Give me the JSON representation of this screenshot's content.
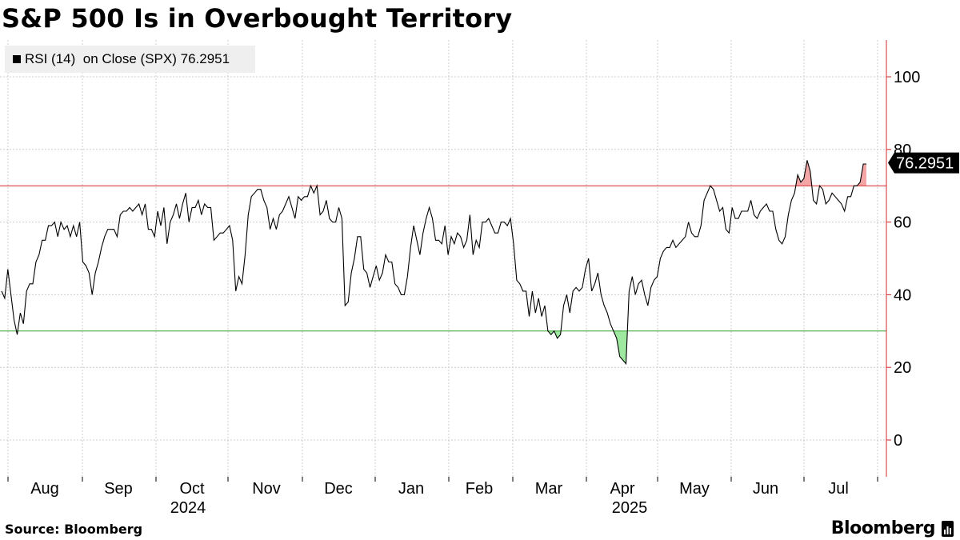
{
  "title": "S&P 500 Is in Overbought Territory",
  "legend": {
    "label": "RSI (14)  on Close (SPX) 76.2951"
  },
  "source": "Source: Bloomberg",
  "brand": {
    "name": "Bloomberg"
  },
  "colors": {
    "line": "#000000",
    "overbought": "#d62728",
    "oversold": "#2ca02c",
    "overbought_fill": "#f4a6a6",
    "oversold_fill": "#9fe89f",
    "grid": "#cccccc"
  },
  "chart_data": {
    "type": "line",
    "title": "S&P 500 Is in Overbought Territory",
    "xlabel": "",
    "ylabel": "",
    "ylim": [
      -10,
      110
    ],
    "yticks": [
      0,
      20,
      40,
      60,
      80,
      100
    ],
    "thresholds": [
      {
        "value": 70,
        "label": "overbought",
        "color": "#d62728"
      },
      {
        "value": 30,
        "label": "oversold",
        "color": "#2ca02c"
      }
    ],
    "month_labels": [
      "Aug",
      "Sep",
      "Oct",
      "Nov",
      "Dec",
      "Jan",
      "Feb",
      "Mar",
      "Apr",
      "May",
      "Jun",
      "Jul"
    ],
    "year_labels": [
      "2024",
      "2025"
    ],
    "last_value_label": "76.2951",
    "series": [
      {
        "name": "RSI (14) on Close (SPX)",
        "values": [
          41,
          39,
          47,
          40,
          33,
          29,
          35,
          32,
          41,
          43,
          43,
          49,
          51,
          55,
          55,
          59,
          59,
          60,
          56,
          60,
          58,
          59,
          56,
          59,
          56,
          60,
          49,
          48,
          46,
          40,
          46,
          49,
          53,
          56,
          58,
          58,
          58,
          56,
          62,
          63,
          63,
          64,
          63,
          64,
          65,
          62,
          65,
          58,
          58,
          56,
          63,
          59,
          64,
          54,
          60,
          62,
          65,
          61,
          65,
          68,
          60,
          64,
          64,
          66,
          62,
          65,
          64,
          64,
          55,
          56,
          57,
          57,
          58,
          59,
          55,
          41,
          45,
          43,
          51,
          62,
          67,
          68,
          69,
          69,
          66,
          64,
          58,
          61,
          58,
          62,
          63,
          65,
          67,
          64,
          61,
          67,
          66,
          67,
          67,
          70,
          68,
          70,
          62,
          63,
          66,
          61,
          60,
          60,
          64,
          61,
          37,
          38,
          46,
          50,
          56,
          56,
          47,
          46,
          42,
          45,
          48,
          44,
          46,
          51,
          49,
          49,
          43,
          42,
          40,
          40,
          45,
          53,
          59,
          55,
          51,
          57,
          61,
          64,
          61,
          55,
          55,
          54,
          59,
          51,
          56,
          54,
          57,
          56,
          53,
          55,
          62,
          51,
          55,
          53,
          60,
          60,
          61,
          59,
          57,
          57,
          60,
          60,
          59,
          61,
          54,
          44,
          43,
          41,
          41,
          34,
          41,
          35,
          39,
          34,
          37,
          30,
          29,
          30,
          28,
          29,
          37,
          40,
          35,
          41,
          42,
          41,
          42,
          47,
          50,
          41,
          43,
          46,
          40,
          37,
          35,
          32,
          30,
          28,
          23,
          22,
          21,
          41,
          45,
          40,
          43,
          44,
          40,
          37,
          42,
          44,
          45,
          50,
          52,
          53,
          53,
          55,
          53,
          54,
          55,
          56,
          60,
          57,
          56,
          56,
          59,
          66,
          68,
          70,
          69,
          66,
          63,
          64,
          58,
          57,
          64,
          61,
          61,
          63,
          63,
          63,
          66,
          62,
          61,
          63,
          64,
          65,
          63,
          63,
          58,
          55,
          54,
          56,
          62,
          66,
          68,
          73,
          71,
          72,
          77,
          74,
          66,
          65,
          70,
          69,
          65,
          66,
          68,
          67,
          66,
          65,
          63,
          67,
          67,
          70,
          70,
          71,
          76,
          76
        ]
      }
    ]
  }
}
